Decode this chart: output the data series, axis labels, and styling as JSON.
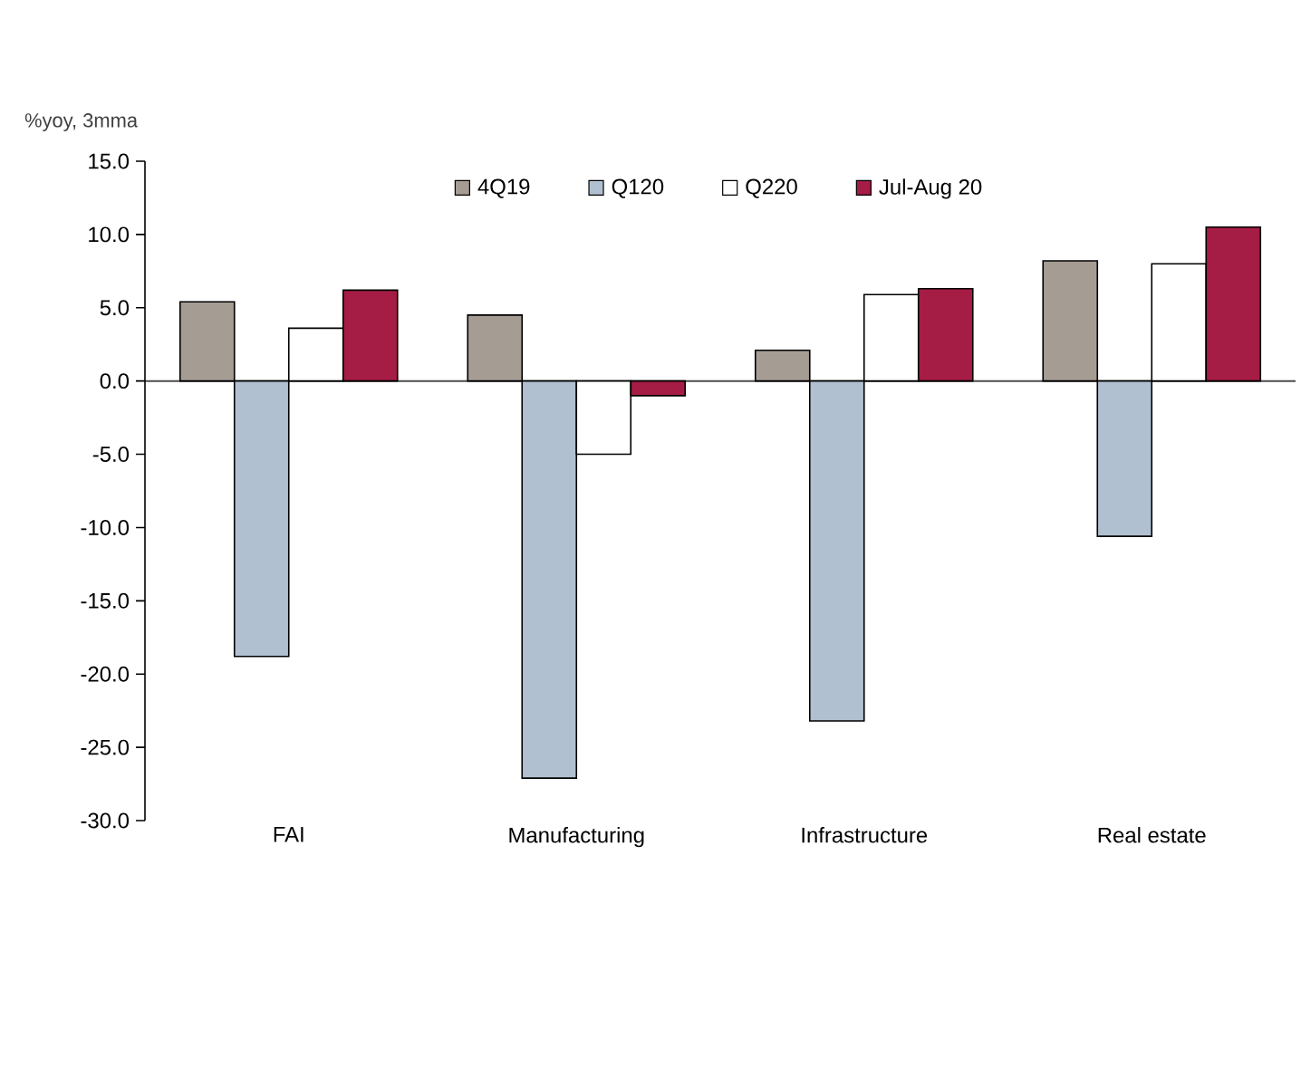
{
  "chart_data": {
    "type": "bar",
    "ylabel": "%yoy, 3mma",
    "categories": [
      "FAI",
      "Manufacturing",
      "Infrastructure",
      "Real estate"
    ],
    "series": [
      {
        "name": "4Q19",
        "color": "#a59c94",
        "values": [
          5.4,
          4.5,
          2.1,
          8.2
        ]
      },
      {
        "name": "Q120",
        "color": "#b0c0d0",
        "values": [
          -18.8,
          -27.1,
          -23.2,
          -10.6
        ]
      },
      {
        "name": "Q220",
        "color": "#ffffff",
        "values": [
          3.6,
          -5.0,
          5.9,
          8.0
        ]
      },
      {
        "name": "Jul-Aug 20",
        "color": "#a51c44",
        "values": [
          6.2,
          -1.0,
          6.3,
          10.5
        ]
      }
    ],
    "ylim": [
      -30,
      15
    ],
    "yticks": [
      {
        "value": -30,
        "label": "-30.0"
      },
      {
        "value": -25,
        "label": "-25.0"
      },
      {
        "value": -20,
        "label": "-20.0"
      },
      {
        "value": -15,
        "label": "-15.0"
      },
      {
        "value": -10,
        "label": "-10.0"
      },
      {
        "value": -5,
        "label": "-5.0"
      },
      {
        "value": 0,
        "label": "0.0"
      },
      {
        "value": 5,
        "label": "5.0"
      },
      {
        "value": 10,
        "label": "10.0"
      },
      {
        "value": 15,
        "label": "15.0"
      }
    ],
    "legend": "top"
  }
}
